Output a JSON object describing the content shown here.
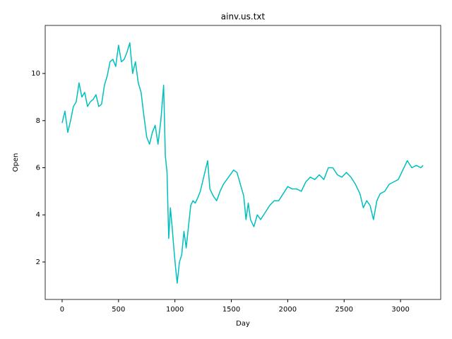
{
  "chart_data": {
    "type": "line",
    "title": "ainv.us.txt",
    "x_label": "Day",
    "y_label": "Open",
    "x": [
      0,
      25,
      50,
      75,
      100,
      125,
      150,
      175,
      200,
      225,
      250,
      275,
      300,
      325,
      350,
      375,
      400,
      425,
      450,
      475,
      500,
      525,
      550,
      575,
      600,
      625,
      650,
      675,
      700,
      725,
      750,
      775,
      800,
      825,
      850,
      875,
      900,
      915,
      930,
      945,
      960,
      975,
      990,
      1005,
      1020,
      1040,
      1060,
      1080,
      1100,
      1120,
      1140,
      1160,
      1180,
      1200,
      1225,
      1250,
      1275,
      1290,
      1310,
      1340,
      1370,
      1400,
      1430,
      1460,
      1490,
      1520,
      1550,
      1580,
      1610,
      1630,
      1650,
      1670,
      1700,
      1730,
      1760,
      1800,
      1840,
      1880,
      1920,
      1960,
      2000,
      2040,
      2080,
      2120,
      2160,
      2200,
      2240,
      2280,
      2320,
      2360,
      2400,
      2440,
      2480,
      2520,
      2560,
      2600,
      2640,
      2670,
      2700,
      2730,
      2760,
      2790,
      2820,
      2860,
      2900,
      2940,
      2980,
      3020,
      3060,
      3100,
      3140,
      3180,
      3200
    ],
    "series": [
      {
        "name": "Open",
        "color": "#00bfbf",
        "values": [
          7.9,
          8.4,
          7.5,
          8.0,
          8.6,
          8.8,
          9.6,
          9.0,
          9.2,
          8.6,
          8.8,
          8.9,
          9.1,
          8.6,
          8.7,
          9.5,
          9.9,
          10.5,
          10.6,
          10.3,
          11.2,
          10.5,
          10.6,
          10.9,
          11.3,
          10.0,
          10.5,
          9.6,
          9.2,
          8.2,
          7.3,
          7.0,
          7.5,
          7.8,
          7.0,
          8.0,
          9.5,
          6.5,
          5.8,
          3.0,
          4.3,
          3.5,
          2.6,
          1.8,
          1.1,
          2.0,
          2.3,
          3.3,
          2.6,
          3.5,
          4.4,
          4.6,
          4.5,
          4.7,
          5.0,
          5.5,
          6.0,
          6.3,
          5.1,
          4.8,
          4.6,
          5.0,
          5.3,
          5.5,
          5.7,
          5.9,
          5.8,
          5.3,
          4.8,
          3.8,
          4.5,
          3.8,
          3.5,
          4.0,
          3.8,
          4.1,
          4.4,
          4.6,
          4.6,
          4.9,
          5.2,
          5.1,
          5.1,
          5.0,
          5.4,
          5.6,
          5.5,
          5.7,
          5.5,
          6.0,
          6.0,
          5.7,
          5.6,
          5.8,
          5.6,
          5.3,
          4.9,
          4.3,
          4.6,
          4.4,
          3.8,
          4.6,
          4.9,
          5.0,
          5.3,
          5.4,
          5.5,
          5.9,
          6.3,
          6.0,
          6.1,
          6.0,
          6.1
        ]
      }
    ],
    "xlim": [
      -150,
      3356
    ],
    "ylim": [
      0.41,
      12.04
    ],
    "xticks": [
      0,
      500,
      1000,
      1500,
      2000,
      2500,
      3000
    ],
    "yticks": [
      2,
      4,
      6,
      8,
      10
    ]
  }
}
